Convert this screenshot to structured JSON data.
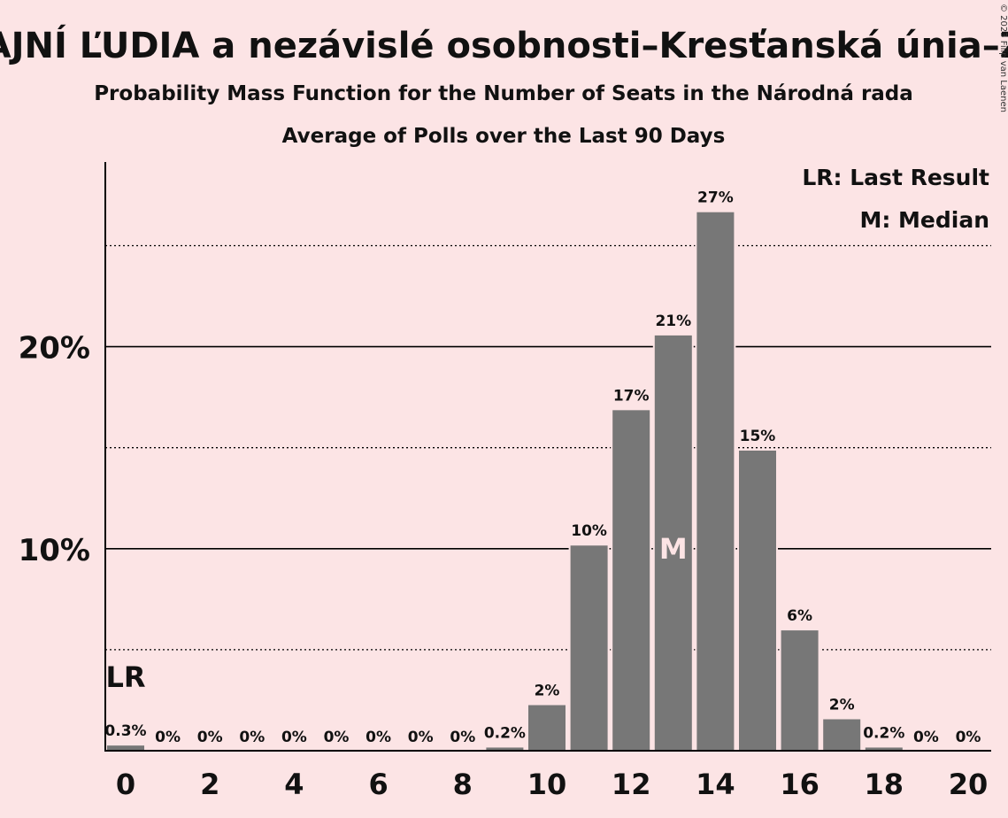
{
  "header": {
    "title": "ČAJNÍ ĽUDIA a nezávislé osobnosti–Kresťanská únia–Za",
    "subtitle1": "Probability Mass Function for the Number of Seats in the Národná rada",
    "subtitle2": "Average of Polls over the Last 90 Days",
    "copyright": "© 2023 Filip van Laenen"
  },
  "legend": {
    "last_result": "LR: Last Result",
    "median": "M: Median"
  },
  "colors": {
    "background": "#fce4e5",
    "bar": "#777777",
    "text": "#111111"
  },
  "chart_data": {
    "type": "bar",
    "x": [
      0,
      1,
      2,
      3,
      4,
      5,
      6,
      7,
      8,
      9,
      10,
      11,
      12,
      13,
      14,
      15,
      16,
      17,
      18,
      19,
      20
    ],
    "values": [
      0.3,
      0,
      0,
      0,
      0,
      0,
      0,
      0,
      0,
      0.2,
      2.3,
      10.2,
      16.9,
      20.6,
      26.7,
      14.9,
      6.0,
      1.6,
      0.2,
      0,
      0
    ],
    "labels": [
      "0.3%",
      "0%",
      "0%",
      "0%",
      "0%",
      "0%",
      "0%",
      "0%",
      "0%",
      "0.2%",
      "2%",
      "10%",
      "17%",
      "21%",
      "27%",
      "15%",
      "6%",
      "2%",
      "0.2%",
      "0%",
      "0%"
    ],
    "x_ticks": [
      "0",
      "2",
      "4",
      "6",
      "8",
      "10",
      "12",
      "14",
      "16",
      "18",
      "20"
    ],
    "y_ticks": [
      "10%",
      "20%"
    ],
    "y_tick_values": [
      10,
      20
    ],
    "y_dotted_values": [
      5,
      15,
      25
    ],
    "ylim": [
      0,
      29
    ],
    "last_result_seat": 0,
    "last_result_label": "LR",
    "median_seat": 13,
    "median_label": "M",
    "legend_position": "top-right",
    "grid": true
  }
}
